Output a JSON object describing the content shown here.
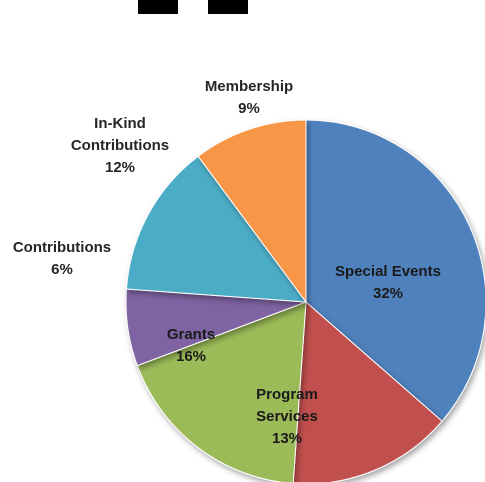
{
  "chart_data": {
    "type": "pie",
    "title": "",
    "slices": [
      {
        "label": "Special Events",
        "lines": [
          "Special Events",
          "32%"
        ],
        "percent": 32,
        "color": "#4f81bd"
      },
      {
        "label": "Program Services",
        "lines": [
          "Program",
          "Services",
          "13%"
        ],
        "percent": 13,
        "color": "#c0504d"
      },
      {
        "label": "Grants",
        "lines": [
          "Grants",
          "16%"
        ],
        "percent": 16,
        "color": "#9bbb59"
      },
      {
        "label": "Contributions",
        "lines": [
          "Contributions",
          "6%"
        ],
        "percent": 6,
        "color": "#8064a2"
      },
      {
        "label": "In-Kind Contributions",
        "lines": [
          "In-Kind",
          "Contributions",
          "12%"
        ],
        "percent": 12,
        "color": "#4bacc6"
      },
      {
        "label": "Membership",
        "lines": [
          "Membership",
          "9%"
        ],
        "percent": 9,
        "color": "#f79646"
      }
    ]
  }
}
